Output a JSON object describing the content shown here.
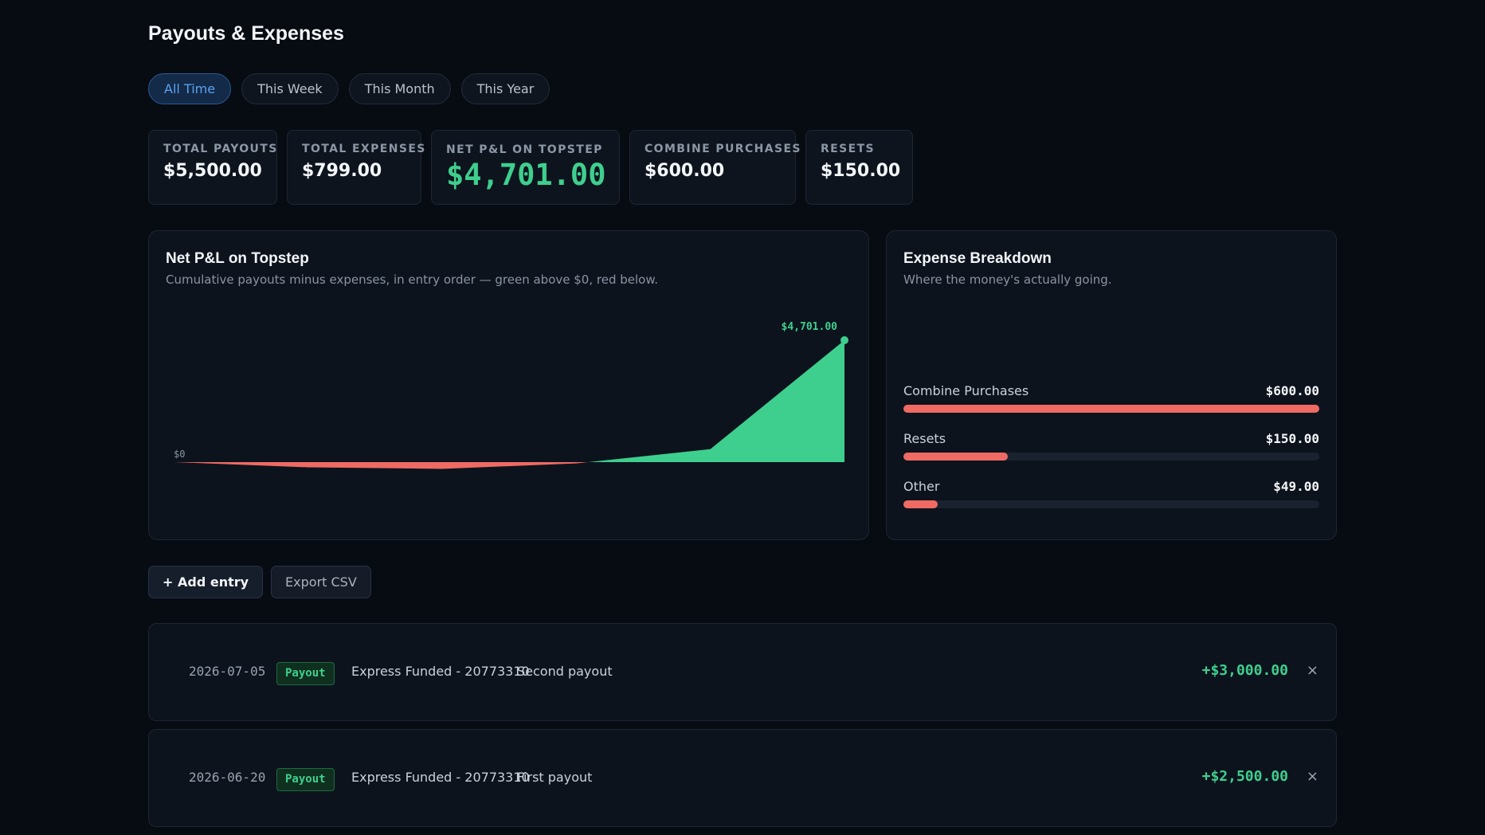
{
  "page": {
    "title": "Payouts & Expenses"
  },
  "tabs": [
    {
      "label": "All Time",
      "active": true
    },
    {
      "label": "This Week",
      "active": false
    },
    {
      "label": "This Month",
      "active": false
    },
    {
      "label": "This Year",
      "active": false
    }
  ],
  "stats": [
    {
      "label": "TOTAL PAYOUTS",
      "value": "$5,500.00"
    },
    {
      "label": "TOTAL EXPENSES",
      "value": "$799.00"
    },
    {
      "label": "NET P&L ON TOPSTEP",
      "value": "$4,701.00"
    },
    {
      "label": "COMBINE PURCHASES",
      "value": "$600.00"
    },
    {
      "label": "RESETS",
      "value": "$150.00"
    }
  ],
  "pnl_card": {
    "title": "Net P&L on Topstep",
    "subtitle": "Cumulative payouts minus expenses, in entry order — green above $0, red below.",
    "zero_label": "$0",
    "end_label": "$4,701.00"
  },
  "chart_data": {
    "type": "area",
    "x": [
      1,
      2,
      3,
      4,
      5,
      6
    ],
    "values": [
      0,
      -200,
      -260,
      -50,
      500,
      4701
    ],
    "positive_color": "#3ecf8e",
    "negative_color": "#ef6a63"
  },
  "expense_card": {
    "title": "Expense Breakdown",
    "subtitle": "Where the money's actually going.",
    "items": [
      {
        "label": "Combine Purchases",
        "value_text": "$600.00",
        "fraction": 1.0
      },
      {
        "label": "Resets",
        "value_text": "$150.00",
        "fraction": 0.25
      },
      {
        "label": "Other",
        "value_text": "$49.00",
        "fraction": 0.082
      }
    ]
  },
  "actions": {
    "add_label": "+ Add entry",
    "export_label": "Export CSV"
  },
  "entries": [
    {
      "date": "2026-07-05",
      "type": "Payout",
      "account": "Express Funded - 20773310",
      "note": "Second payout",
      "amount": "+$3,000.00",
      "remove": "×"
    },
    {
      "date": "2026-06-20",
      "type": "Payout",
      "account": "Express Funded - 20773310",
      "note": "First payout",
      "amount": "+$2,500.00",
      "remove": "×"
    }
  ]
}
